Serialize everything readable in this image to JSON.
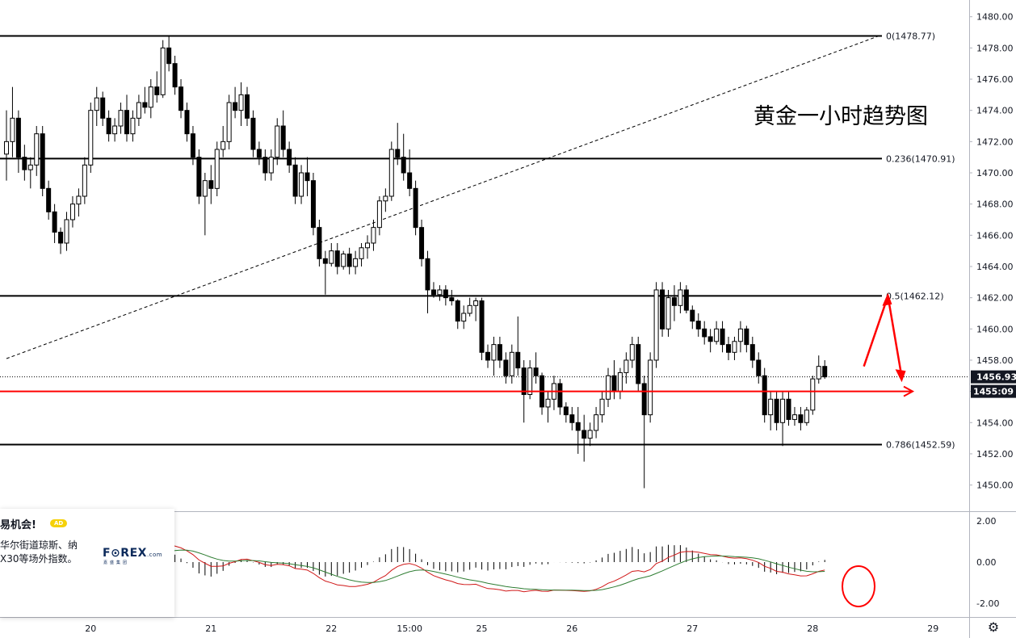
{
  "chart_data": {
    "type": "candlestick",
    "title": "黄金一小时趋势图",
    "price_axis": {
      "min": 1449,
      "max": 1481,
      "ticks": [
        "1480.00",
        "1478.00",
        "1476.00",
        "1474.00",
        "1472.00",
        "1470.00",
        "1468.00",
        "1466.00",
        "1464.00",
        "1462.00",
        "1460.00",
        "1458.00",
        "1456.00",
        "1454.00",
        "1452.00",
        "1450.00"
      ],
      "current_price": 1456.93,
      "current_price_label": "1456.93",
      "countdown_prefix": "14",
      "countdown": "55:09"
    },
    "time_axis": {
      "labels": [
        {
          "label": "20",
          "index": 14
        },
        {
          "label": "21",
          "index": 34
        },
        {
          "label": "22",
          "index": 54
        },
        {
          "label": "15:00",
          "index": 67
        },
        {
          "label": "25",
          "index": 79
        },
        {
          "label": "26",
          "index": 94
        },
        {
          "label": "27",
          "index": 114
        },
        {
          "label": "28",
          "index": 134
        },
        {
          "label": "29",
          "index": 154
        }
      ]
    },
    "fibonacci": [
      {
        "label": "0(1478.77)",
        "price": 1478.77
      },
      {
        "label": "0.236(1470.91)",
        "price": 1470.91
      },
      {
        "label": "0.5(1462.12)",
        "price": 1462.12
      },
      {
        "label": "0.786(1452.59)",
        "price": 1452.59
      }
    ],
    "horizontal_line_price": 1456.0,
    "trendline": {
      "from": {
        "index": 0,
        "price": 1458.1
      },
      "to": {
        "index": 145,
        "price": 1478.77
      }
    },
    "arrow_path": [
      {
        "index": 142.5,
        "price": 1457.6
      },
      {
        "index": 146.5,
        "price": 1462.1
      },
      {
        "index": 148.8,
        "price": 1456.9
      }
    ],
    "candles": [
      [
        1471.2,
        1474.0,
        1469.5,
        1472.0
      ],
      [
        1472.0,
        1475.5,
        1471.0,
        1473.5
      ],
      [
        1473.5,
        1474.0,
        1470.0,
        1471.0
      ],
      [
        1471.0,
        1471.8,
        1469.5,
        1470.2
      ],
      [
        1470.2,
        1471.0,
        1469.0,
        1470.5
      ],
      [
        1470.5,
        1473.0,
        1469.8,
        1472.5
      ],
      [
        1472.5,
        1473.0,
        1468.5,
        1469.0
      ],
      [
        1469.0,
        1469.5,
        1467.0,
        1467.5
      ],
      [
        1467.5,
        1468.0,
        1465.5,
        1466.2
      ],
      [
        1466.2,
        1466.5,
        1464.8,
        1465.5
      ],
      [
        1465.5,
        1467.5,
        1465.0,
        1467.0
      ],
      [
        1467.0,
        1468.5,
        1466.5,
        1468.0
      ],
      [
        1468.0,
        1469.0,
        1467.2,
        1468.5
      ],
      [
        1468.5,
        1471.0,
        1468.0,
        1470.5
      ],
      [
        1470.5,
        1474.5,
        1470.0,
        1474.0
      ],
      [
        1474.0,
        1475.5,
        1473.0,
        1474.8
      ],
      [
        1474.8,
        1475.2,
        1473.0,
        1473.5
      ],
      [
        1473.5,
        1474.0,
        1472.0,
        1472.5
      ],
      [
        1472.5,
        1473.5,
        1472.0,
        1473.0
      ],
      [
        1473.0,
        1474.5,
        1472.5,
        1474.0
      ],
      [
        1474.0,
        1475.0,
        1472.0,
        1472.5
      ],
      [
        1472.5,
        1474.0,
        1472.0,
        1473.5
      ],
      [
        1473.5,
        1475.0,
        1473.0,
        1474.5
      ],
      [
        1474.5,
        1475.5,
        1473.8,
        1474.2
      ],
      [
        1474.2,
        1476.0,
        1473.5,
        1475.5
      ],
      [
        1475.5,
        1476.5,
        1474.5,
        1475.0
      ],
      [
        1475.0,
        1478.5,
        1474.8,
        1478.0
      ],
      [
        1478.0,
        1478.8,
        1476.5,
        1477.0
      ],
      [
        1477.0,
        1477.5,
        1475.0,
        1475.5
      ],
      [
        1475.5,
        1476.0,
        1473.5,
        1474.0
      ],
      [
        1474.0,
        1474.5,
        1472.0,
        1472.5
      ],
      [
        1472.5,
        1473.0,
        1470.5,
        1471.0
      ],
      [
        1471.0,
        1471.5,
        1468.0,
        1468.5
      ],
      [
        1468.5,
        1470.0,
        1466.0,
        1469.5
      ],
      [
        1469.5,
        1470.5,
        1468.0,
        1469.0
      ],
      [
        1469.0,
        1472.0,
        1468.5,
        1471.5
      ],
      [
        1471.5,
        1473.0,
        1471.0,
        1472.0
      ],
      [
        1472.0,
        1475.0,
        1471.5,
        1474.5
      ],
      [
        1474.5,
        1475.5,
        1473.5,
        1474.0
      ],
      [
        1474.0,
        1475.8,
        1473.0,
        1475.0
      ],
      [
        1475.0,
        1475.5,
        1473.0,
        1473.5
      ],
      [
        1473.5,
        1474.0,
        1471.0,
        1471.5
      ],
      [
        1471.5,
        1472.0,
        1470.5,
        1471.0
      ],
      [
        1471.0,
        1471.5,
        1469.5,
        1470.0
      ],
      [
        1470.0,
        1471.5,
        1469.5,
        1471.0
      ],
      [
        1471.0,
        1473.5,
        1470.5,
        1473.0
      ],
      [
        1473.0,
        1474.0,
        1471.0,
        1471.5
      ],
      [
        1471.5,
        1472.0,
        1470.0,
        1470.5
      ],
      [
        1470.5,
        1471.0,
        1468.0,
        1468.5
      ],
      [
        1468.5,
        1470.5,
        1468.0,
        1470.0
      ],
      [
        1470.0,
        1471.0,
        1468.5,
        1469.5
      ],
      [
        1469.5,
        1470.0,
        1466.0,
        1466.5
      ],
      [
        1466.5,
        1467.0,
        1464.0,
        1464.5
      ],
      [
        1464.5,
        1465.0,
        1462.2,
        1464.2
      ],
      [
        1464.2,
        1465.5,
        1464.0,
        1465.0
      ],
      [
        1465.0,
        1465.5,
        1463.5,
        1464.0
      ],
      [
        1464.0,
        1465.0,
        1463.8,
        1464.8
      ],
      [
        1464.8,
        1465.2,
        1463.5,
        1464.0
      ],
      [
        1464.0,
        1465.0,
        1463.5,
        1464.5
      ],
      [
        1464.5,
        1465.5,
        1464.0,
        1465.2
      ],
      [
        1465.2,
        1466.0,
        1464.5,
        1465.5
      ],
      [
        1465.5,
        1467.0,
        1465.0,
        1466.5
      ],
      [
        1466.5,
        1468.5,
        1466.0,
        1468.2
      ],
      [
        1468.2,
        1469.0,
        1467.5,
        1468.5
      ],
      [
        1468.5,
        1472.0,
        1468.2,
        1471.5
      ],
      [
        1471.5,
        1473.2,
        1470.5,
        1471.0
      ],
      [
        1471.0,
        1472.5,
        1469.5,
        1470.0
      ],
      [
        1470.0,
        1471.5,
        1468.5,
        1469.0
      ],
      [
        1469.0,
        1469.5,
        1466.0,
        1466.5
      ],
      [
        1466.5,
        1467.0,
        1464.0,
        1464.5
      ],
      [
        1464.5,
        1465.0,
        1461.0,
        1462.5
      ],
      [
        1462.5,
        1463.0,
        1462.0,
        1462.2
      ],
      [
        1462.2,
        1462.8,
        1461.8,
        1462.5
      ],
      [
        1462.5,
        1462.8,
        1461.5,
        1462.0
      ],
      [
        1462.0,
        1462.5,
        1461.5,
        1461.8
      ],
      [
        1461.8,
        1461.9,
        1460.0,
        1460.5
      ],
      [
        1460.5,
        1461.5,
        1460.0,
        1461.0
      ],
      [
        1461.0,
        1462.0,
        1460.8,
        1461.5
      ],
      [
        1461.5,
        1462.0,
        1460.5,
        1461.8
      ],
      [
        1461.8,
        1462.0,
        1458.0,
        1458.5
      ],
      [
        1458.5,
        1459.0,
        1457.5,
        1458.0
      ],
      [
        1458.0,
        1459.5,
        1457.0,
        1459.0
      ],
      [
        1459.0,
        1459.5,
        1457.5,
        1458.0
      ],
      [
        1458.0,
        1458.5,
        1456.5,
        1457.0
      ],
      [
        1457.0,
        1459.0,
        1456.5,
        1458.5
      ],
      [
        1458.5,
        1460.8,
        1457.0,
        1457.5
      ],
      [
        1457.5,
        1458.0,
        1454.0,
        1455.8
      ],
      [
        1455.8,
        1458.0,
        1455.5,
        1457.5
      ],
      [
        1457.5,
        1458.5,
        1456.5,
        1457.0
      ],
      [
        1457.0,
        1457.2,
        1454.5,
        1455.0
      ],
      [
        1455.0,
        1456.0,
        1454.0,
        1455.5
      ],
      [
        1455.5,
        1457.0,
        1454.8,
        1456.5
      ],
      [
        1456.5,
        1456.8,
        1454.5,
        1455.0
      ],
      [
        1455.0,
        1455.3,
        1454.0,
        1454.5
      ],
      [
        1454.5,
        1455.0,
        1453.5,
        1454.0
      ],
      [
        1454.0,
        1455.0,
        1452.0,
        1453.5
      ],
      [
        1453.5,
        1454.5,
        1451.5,
        1453.0
      ],
      [
        1453.0,
        1454.0,
        1452.5,
        1453.5
      ],
      [
        1453.5,
        1455.0,
        1453.0,
        1454.5
      ],
      [
        1454.5,
        1456.0,
        1454.0,
        1455.5
      ],
      [
        1455.5,
        1457.5,
        1455.0,
        1457.0
      ],
      [
        1457.0,
        1458.0,
        1455.5,
        1456.0
      ],
      [
        1456.0,
        1457.5,
        1455.5,
        1457.2
      ],
      [
        1457.2,
        1458.5,
        1456.5,
        1458.0
      ],
      [
        1458.0,
        1459.5,
        1457.5,
        1459.0
      ],
      [
        1459.0,
        1459.5,
        1456.0,
        1456.5
      ],
      [
        1456.5,
        1457.0,
        1449.8,
        1454.5
      ],
      [
        1454.5,
        1458.5,
        1454.0,
        1458.0
      ],
      [
        1458.0,
        1463.0,
        1457.5,
        1462.5
      ],
      [
        1462.5,
        1463.0,
        1459.5,
        1460.0
      ],
      [
        1460.0,
        1462.5,
        1459.5,
        1462.0
      ],
      [
        1462.0,
        1462.8,
        1460.5,
        1461.5
      ],
      [
        1461.5,
        1463.0,
        1461.0,
        1462.5
      ],
      [
        1462.5,
        1462.8,
        1461.0,
        1461.2
      ],
      [
        1461.2,
        1461.5,
        1460.0,
        1460.5
      ],
      [
        1460.5,
        1461.0,
        1459.5,
        1460.0
      ],
      [
        1460.0,
        1460.5,
        1459.0,
        1459.5
      ],
      [
        1459.5,
        1460.0,
        1458.5,
        1459.2
      ],
      [
        1459.2,
        1460.5,
        1459.0,
        1460.0
      ],
      [
        1460.0,
        1460.5,
        1458.5,
        1459.0
      ],
      [
        1459.0,
        1459.5,
        1458.0,
        1458.5
      ],
      [
        1458.5,
        1459.5,
        1458.0,
        1459.2
      ],
      [
        1459.2,
        1460.5,
        1458.5,
        1460.0
      ],
      [
        1460.0,
        1460.2,
        1458.5,
        1459.0
      ],
      [
        1459.0,
        1459.5,
        1457.5,
        1458.0
      ],
      [
        1458.0,
        1458.5,
        1456.5,
        1457.0
      ],
      [
        1457.0,
        1457.5,
        1454.0,
        1454.5
      ],
      [
        1454.5,
        1456.0,
        1453.5,
        1455.5
      ],
      [
        1455.5,
        1456.0,
        1453.5,
        1454.0
      ],
      [
        1454.0,
        1456.0,
        1452.5,
        1455.5
      ],
      [
        1455.5,
        1456.0,
        1453.8,
        1454.2
      ],
      [
        1454.2,
        1455.0,
        1453.8,
        1454.5
      ],
      [
        1454.5,
        1455.0,
        1453.5,
        1454.0
      ],
      [
        1454.0,
        1455.0,
        1453.8,
        1454.8
      ],
      [
        1454.8,
        1457.0,
        1454.5,
        1456.8
      ],
      [
        1456.8,
        1458.3,
        1456.5,
        1457.6
      ],
      [
        1457.6,
        1458.0,
        1456.8,
        1456.93
      ]
    ]
  },
  "ad": {
    "headline": "易机会!",
    "tag": "AD",
    "line1": "华尔街道琼斯、纳",
    "line2": "X30等场外指数。",
    "logo_main": "F⊙REX",
    "logo_suffix": ".com",
    "logo_sub": "嘉盛集团"
  },
  "macd_axis": {
    "ticks": [
      {
        "label": "2.00",
        "value": 2
      },
      {
        "label": "0.00",
        "value": 0
      },
      {
        "label": "-2.00",
        "value": -2
      }
    ],
    "min": -2.9,
    "max": 2.4
  },
  "icons": {
    "settings": "gear-icon"
  },
  "colors": {
    "bull": "#ffffff",
    "bear": "#000000",
    "wick": "#000000",
    "fib": "#000000",
    "red": "#ff0000",
    "macd_fast": "#d01818",
    "macd_slow": "#2e7d32",
    "histogram": "#000000",
    "badge": "#131722"
  }
}
